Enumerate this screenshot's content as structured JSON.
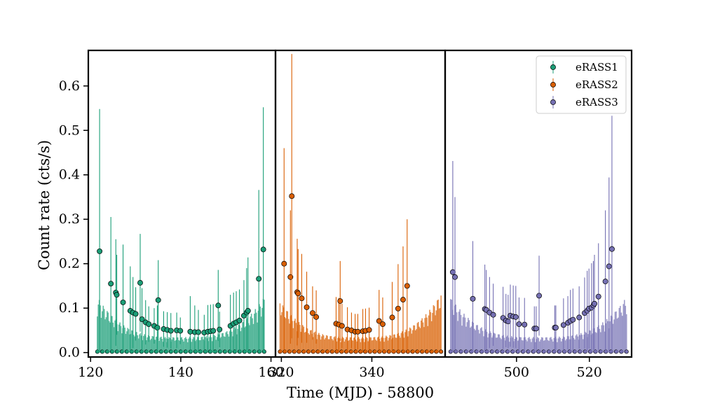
{
  "chart_data": {
    "type": "scatter",
    "ylabel": "Count rate (cts/s)",
    "xlabel": "Time (MJD) - 58800",
    "ylim": [
      -0.01,
      0.68
    ],
    "yticks": [
      0.0,
      0.1,
      0.2,
      0.3,
      0.4,
      0.5,
      0.6
    ],
    "legend_position": "top-right",
    "panels": [
      {
        "name": "eRASS1",
        "color": "#1b9e77",
        "xlim": [
          119.5,
          161.0
        ],
        "xticks": [
          120,
          140,
          160
        ],
        "envelope": {
          "x": [
            121.5,
            140.0,
            158.5
          ],
          "y_edge": 0.125,
          "y_center": 0.035
        },
        "points": [
          {
            "x": 122.0,
            "y": 0.228,
            "err": 0.32
          },
          {
            "x": 124.5,
            "y": 0.155,
            "err": 0.15
          },
          {
            "x": 125.6,
            "y": 0.135,
            "err": 0.12
          },
          {
            "x": 125.8,
            "y": 0.13,
            "err": 0.09
          },
          {
            "x": 127.2,
            "y": 0.113,
            "err": 0.13
          },
          {
            "x": 128.8,
            "y": 0.094,
            "err": 0.1
          },
          {
            "x": 129.4,
            "y": 0.09,
            "err": 0.08
          },
          {
            "x": 130.0,
            "y": 0.087,
            "err": 0.06
          },
          {
            "x": 131.0,
            "y": 0.157,
            "err": 0.11
          },
          {
            "x": 131.4,
            "y": 0.075,
            "err": 0.07
          },
          {
            "x": 132.2,
            "y": 0.068,
            "err": 0.05
          },
          {
            "x": 132.9,
            "y": 0.064,
            "err": 0.04
          },
          {
            "x": 134.1,
            "y": 0.06,
            "err": 0.04
          },
          {
            "x": 134.8,
            "y": 0.056,
            "err": 0.05
          },
          {
            "x": 135.0,
            "y": 0.118,
            "err": 0.09
          },
          {
            "x": 136.2,
            "y": 0.053,
            "err": 0.04
          },
          {
            "x": 137.0,
            "y": 0.051,
            "err": 0.04
          },
          {
            "x": 137.8,
            "y": 0.049,
            "err": 0.04
          },
          {
            "x": 139.1,
            "y": 0.05,
            "err": 0.04
          },
          {
            "x": 139.9,
            "y": 0.049,
            "err": 0.03
          },
          {
            "x": 142.1,
            "y": 0.047,
            "err": 0.08
          },
          {
            "x": 143.1,
            "y": 0.046,
            "err": 0.06
          },
          {
            "x": 143.9,
            "y": 0.046,
            "err": 0.05
          },
          {
            "x": 145.2,
            "y": 0.045,
            "err": 0.04
          },
          {
            "x": 146.0,
            "y": 0.047,
            "err": 0.06
          },
          {
            "x": 146.6,
            "y": 0.048,
            "err": 0.06
          },
          {
            "x": 147.2,
            "y": 0.049,
            "err": 0.06
          },
          {
            "x": 148.3,
            "y": 0.106,
            "err": 0.08
          },
          {
            "x": 148.6,
            "y": 0.052,
            "err": 0.04
          },
          {
            "x": 151.0,
            "y": 0.06,
            "err": 0.07
          },
          {
            "x": 151.7,
            "y": 0.065,
            "err": 0.07
          },
          {
            "x": 152.3,
            "y": 0.068,
            "err": 0.07
          },
          {
            "x": 153.0,
            "y": 0.072,
            "err": 0.07
          },
          {
            "x": 154.0,
            "y": 0.083,
            "err": 0.08
          },
          {
            "x": 154.6,
            "y": 0.09,
            "err": 0.1
          },
          {
            "x": 154.9,
            "y": 0.094,
            "err": 0.12
          },
          {
            "x": 157.3,
            "y": 0.166,
            "err": 0.2
          },
          {
            "x": 158.3,
            "y": 0.232,
            "err": 0.32
          }
        ]
      },
      {
        "name": "eRASS2",
        "color": "#d95f02",
        "xlim": [
          318.7,
          356.2
        ],
        "xticks": [
          320,
          340
        ],
        "envelope": {
          "x": [
            319.7,
            337.0,
            355.3
          ],
          "y_edge": 0.125,
          "y_center": 0.035
        },
        "points": [
          {
            "x": 320.6,
            "y": 0.2,
            "err": 0.26
          },
          {
            "x": 322.0,
            "y": 0.17,
            "err": 0.15
          },
          {
            "x": 322.3,
            "y": 0.352,
            "err": 0.32
          },
          {
            "x": 323.5,
            "y": 0.136,
            "err": 0.12
          },
          {
            "x": 323.7,
            "y": 0.133,
            "err": 0.1
          },
          {
            "x": 324.5,
            "y": 0.122,
            "err": 0.1
          },
          {
            "x": 325.6,
            "y": 0.102,
            "err": 0.08
          },
          {
            "x": 326.9,
            "y": 0.089,
            "err": 0.06
          },
          {
            "x": 327.7,
            "y": 0.08,
            "err": 0.06
          },
          {
            "x": 332.1,
            "y": 0.065,
            "err": 0.06
          },
          {
            "x": 332.7,
            "y": 0.063,
            "err": 0.06
          },
          {
            "x": 333.0,
            "y": 0.116,
            "err": 0.09
          },
          {
            "x": 333.4,
            "y": 0.06,
            "err": 0.05
          },
          {
            "x": 334.6,
            "y": 0.052,
            "err": 0.05
          },
          {
            "x": 335.5,
            "y": 0.05,
            "err": 0.04
          },
          {
            "x": 336.3,
            "y": 0.047,
            "err": 0.04
          },
          {
            "x": 336.9,
            "y": 0.047,
            "err": 0.04
          },
          {
            "x": 338.0,
            "y": 0.048,
            "err": 0.05
          },
          {
            "x": 338.6,
            "y": 0.049,
            "err": 0.05
          },
          {
            "x": 339.4,
            "y": 0.051,
            "err": 0.05
          },
          {
            "x": 341.6,
            "y": 0.071,
            "err": 0.07
          },
          {
            "x": 342.4,
            "y": 0.064,
            "err": 0.06
          },
          {
            "x": 344.5,
            "y": 0.079,
            "err": 0.08
          },
          {
            "x": 345.8,
            "y": 0.099,
            "err": 0.1
          },
          {
            "x": 346.9,
            "y": 0.119,
            "err": 0.12
          },
          {
            "x": 347.8,
            "y": 0.15,
            "err": 0.15
          }
        ]
      },
      {
        "name": "eRASS3",
        "color": "#7570b3",
        "xlim": [
          480.4,
          531.6
        ],
        "xticks": [
          500,
          520
        ],
        "envelope": {
          "x": [
            481.9,
            506.0,
            530.2
          ],
          "y_edge": 0.125,
          "y_center": 0.035
        },
        "points": [
          {
            "x": 482.5,
            "y": 0.181,
            "err": 0.25
          },
          {
            "x": 483.1,
            "y": 0.17,
            "err": 0.18
          },
          {
            "x": 488.0,
            "y": 0.121,
            "err": 0.13
          },
          {
            "x": 491.3,
            "y": 0.098,
            "err": 0.1
          },
          {
            "x": 491.7,
            "y": 0.096,
            "err": 0.09
          },
          {
            "x": 492.6,
            "y": 0.09,
            "err": 0.08
          },
          {
            "x": 493.6,
            "y": 0.085,
            "err": 0.07
          },
          {
            "x": 496.3,
            "y": 0.078,
            "err": 0.07
          },
          {
            "x": 497.1,
            "y": 0.072,
            "err": 0.06
          },
          {
            "x": 497.7,
            "y": 0.07,
            "err": 0.06
          },
          {
            "x": 498.3,
            "y": 0.083,
            "err": 0.07
          },
          {
            "x": 499.1,
            "y": 0.081,
            "err": 0.07
          },
          {
            "x": 499.8,
            "y": 0.08,
            "err": 0.07
          },
          {
            "x": 500.7,
            "y": 0.064,
            "err": 0.06
          },
          {
            "x": 502.2,
            "y": 0.063,
            "err": 0.06
          },
          {
            "x": 504.9,
            "y": 0.054,
            "err": 0.05
          },
          {
            "x": 505.4,
            "y": 0.054,
            "err": 0.05
          },
          {
            "x": 506.2,
            "y": 0.128,
            "err": 0.09
          },
          {
            "x": 510.5,
            "y": 0.056,
            "err": 0.05
          },
          {
            "x": 510.8,
            "y": 0.056,
            "err": 0.05
          },
          {
            "x": 512.9,
            "y": 0.062,
            "err": 0.06
          },
          {
            "x": 514.1,
            "y": 0.067,
            "err": 0.06
          },
          {
            "x": 514.8,
            "y": 0.071,
            "err": 0.07
          },
          {
            "x": 515.5,
            "y": 0.074,
            "err": 0.07
          },
          {
            "x": 517.2,
            "y": 0.079,
            "err": 0.07
          },
          {
            "x": 518.7,
            "y": 0.089,
            "err": 0.08
          },
          {
            "x": 519.4,
            "y": 0.094,
            "err": 0.09
          },
          {
            "x": 519.9,
            "y": 0.099,
            "err": 0.09
          },
          {
            "x": 520.6,
            "y": 0.101,
            "err": 0.1
          },
          {
            "x": 521.1,
            "y": 0.106,
            "err": 0.1
          },
          {
            "x": 521.4,
            "y": 0.11,
            "err": 0.11
          },
          {
            "x": 522.5,
            "y": 0.126,
            "err": 0.12
          },
          {
            "x": 524.4,
            "y": 0.16,
            "err": 0.16
          },
          {
            "x": 525.4,
            "y": 0.194,
            "err": 0.2
          },
          {
            "x": 526.2,
            "y": 0.233,
            "err": 0.3
          }
        ]
      }
    ],
    "legend": [
      "eRASS1",
      "eRASS2",
      "eRASS3"
    ]
  }
}
